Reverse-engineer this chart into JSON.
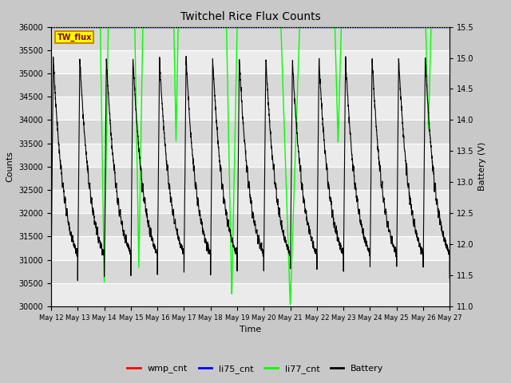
{
  "title": "Twitchel Rice Flux Counts",
  "xlabel": "Time",
  "ylabel_left": "Counts",
  "ylabel_right": "Battery (V)",
  "ylim_left": [
    30000,
    36000
  ],
  "ylim_right": [
    11.0,
    15.5
  ],
  "yticks_left": [
    30000,
    30500,
    31000,
    31500,
    32000,
    32500,
    33000,
    33500,
    34000,
    34500,
    35000,
    35500,
    36000
  ],
  "yticks_right": [
    11.0,
    11.5,
    12.0,
    12.5,
    13.0,
    13.5,
    14.0,
    14.5,
    15.0,
    15.5
  ],
  "xtick_labels": [
    "May 12",
    "May 13",
    "May 14",
    "May 15",
    "May 16",
    "May 17",
    "May 18",
    "May 19",
    "May 20",
    "May 21",
    "May 22",
    "May 23",
    "May 24",
    "May 25",
    "May 26",
    "May 27"
  ],
  "fig_bg_color": "#c8c8c8",
  "plot_bg_color": "#e8e8e8",
  "band_color_dark": "#d8d8d8",
  "band_color_light": "#ebebeb",
  "grid_color": "#ffffff",
  "legend_items": [
    "wmp_cnt",
    "li75_cnt",
    "li77_cnt",
    "Battery"
  ],
  "legend_colors": [
    "#ff0000",
    "#0000ff",
    "#00ff00",
    "#000000"
  ],
  "annotation_box_text": "TW_flux",
  "annotation_box_facecolor": "#ffff00",
  "annotation_box_edgecolor": "#cc8800",
  "annotation_text_color": "#8B0000",
  "title_fontsize": 10,
  "axis_fontsize": 8,
  "tick_fontsize": 7,
  "legend_fontsize": 8,
  "n_peaks": 15,
  "peak_min_v": 11.45,
  "peak_max_v": 15.0,
  "li77_dip_positions_days": [
    2.0,
    3.3,
    4.7,
    6.8,
    9.0,
    10.8,
    14.2
  ],
  "li77_dip_depths": [
    5500,
    5200,
    2500,
    5800,
    6000,
    2500,
    2200
  ],
  "li77_dip_widths_days": [
    0.15,
    0.15,
    0.08,
    0.2,
    0.35,
    0.12,
    0.1
  ]
}
